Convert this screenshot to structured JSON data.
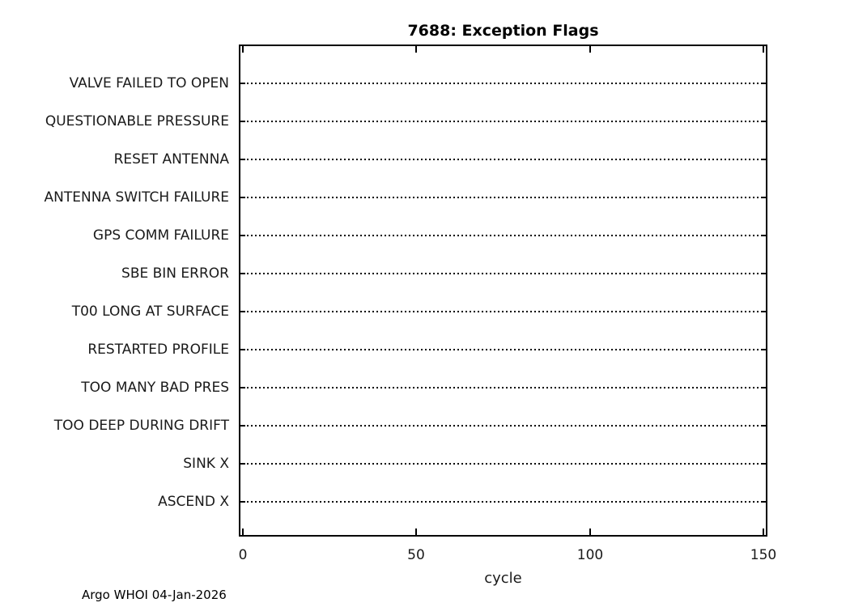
{
  "chart_data": {
    "type": "scatter",
    "title": "7688: Exception Flags",
    "xlabel": "cycle",
    "ylabel": "",
    "categories": [
      "VALVE FAILED TO OPEN",
      "QUESTIONABLE PRESSURE",
      "RESET ANTENNA",
      "ANTENNA SWITCH FAILURE",
      "GPS COMM FAILURE",
      "SBE BIN ERROR",
      "T00 LONG AT SURFACE",
      "RESTARTED PROFILE",
      "TOO MANY BAD PRES",
      "TOO DEEP DURING DRIFT",
      "SINK X",
      "ASCEND X"
    ],
    "x_ticks": [
      "0",
      "50",
      "100",
      "150"
    ],
    "xlim": [
      0,
      150
    ],
    "series": [],
    "points": [],
    "gridlines": "dotted horizontal line per category",
    "legend": "none",
    "annotation": "Argo WHOI 04-Jan-2026",
    "colors": {
      "axis": "#000000",
      "text": "#1a1a1a",
      "background": "#ffffff"
    }
  }
}
